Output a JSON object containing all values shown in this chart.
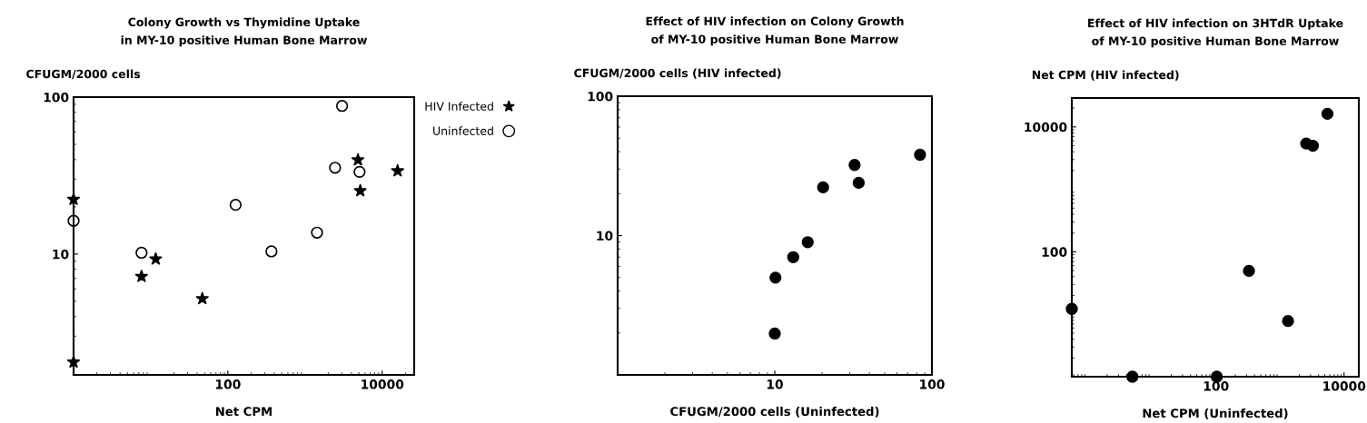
{
  "chart_data": [
    {
      "type": "scatter",
      "title": "Colony Growth vs Thymidine Uptake\nin MY-10 positive Human Bone Marrow",
      "xlabel": "Net CPM",
      "ylabel": "CFUGM/2000 cells",
      "log": "xy",
      "xlim": [
        1,
        26000
      ],
      "xticks": [
        100,
        10000
      ],
      "ylim": [
        1.7,
        100
      ],
      "yticks": [
        10,
        100
      ],
      "legend": "right",
      "grid": false,
      "series": [
        {
          "name": "HIV Infected",
          "color": "#000000",
          "marker": "star",
          "x": [
            1,
            1,
            7.6,
            11.6,
            46.6,
            4850,
            5200,
            15850
          ],
          "values": [
            22.3,
            2.05,
            7.2,
            9.3,
            5.2,
            39.8,
            25.3,
            33.9
          ]
        },
        {
          "name": "Uninfected",
          "color": "#000000",
          "marker": "circle",
          "x": [
            1,
            7.6,
            126,
            367,
            1430,
            2450,
            3020,
            5090
          ],
          "values": [
            16.3,
            10.2,
            20.6,
            10.4,
            13.7,
            35.5,
            87.9,
            33.4
          ]
        }
      ]
    },
    {
      "type": "scatter",
      "title": "Effect of HIV infection on Colony Growth\nof MY-10 positive Human Bone Marrow",
      "xlabel": "CFUGM/2000 cells (Uninfected)",
      "ylabel": "CFUGM/2000 cells (HIV infected)",
      "log": "xy",
      "xlim": [
        1,
        100
      ],
      "xticks": [
        10,
        100
      ],
      "ylim": [
        1,
        100
      ],
      "yticks": [
        10,
        100
      ],
      "grid": false,
      "series": [
        {
          "color": "#000000",
          "marker": "circle",
          "x": [
            10,
            10.1,
            13.1,
            16.2,
            20.3,
            32.2,
            34.2,
            84
          ],
          "values": [
            1.98,
            4.99,
            7.0,
            8.96,
            22.2,
            32.1,
            23.9,
            38
          ]
        }
      ]
    },
    {
      "type": "scatter",
      "title": "Effect of HIV infection on 3HTdR Uptake\nof MY-10 positive Human Bone Marrow",
      "xlabel": "Net CPM (Uninfected)",
      "ylabel": "Net CPM (HIV infected)",
      "log": "xy",
      "xlim": [
        0.56,
        17000
      ],
      "xticks": [
        100,
        10000
      ],
      "ylim": [
        1,
        29000
      ],
      "yticks": [
        100,
        10000
      ],
      "grid": false,
      "series": [
        {
          "color": "#000000",
          "marker": "circle",
          "x": [
            0.56,
            4.95,
            103,
            327,
            1333,
            2565,
            3260,
            5500
          ],
          "values": [
            12.2,
            1,
            1,
            49.5,
            7.8,
            5410,
            5000,
            16200
          ]
        }
      ]
    }
  ]
}
